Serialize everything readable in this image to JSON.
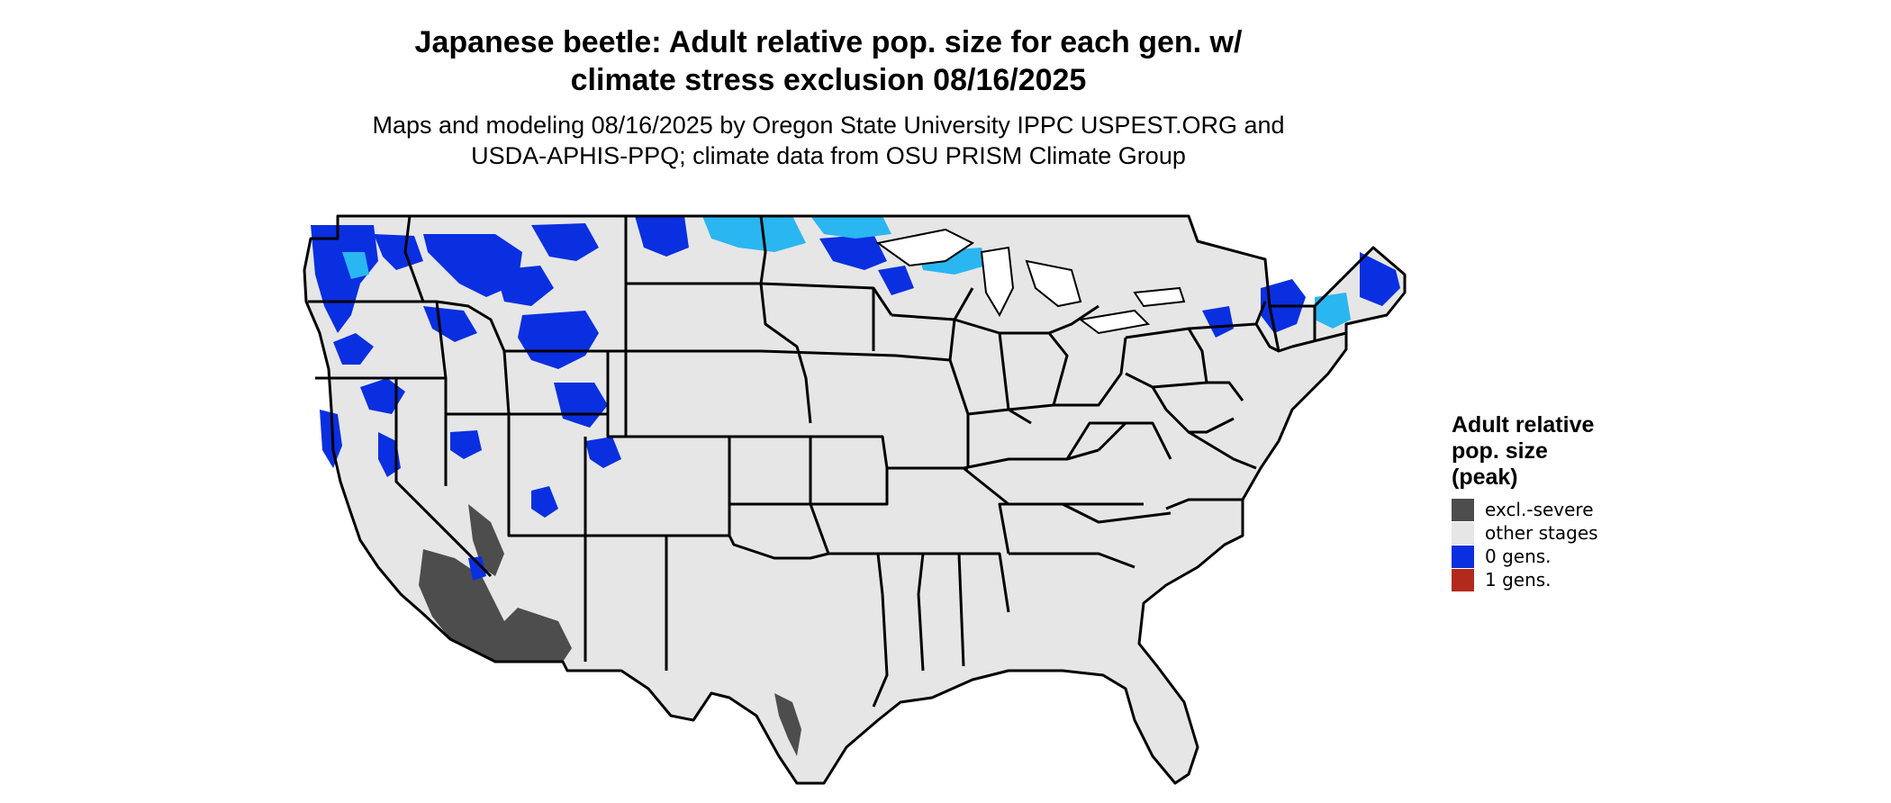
{
  "title_lines": [
    "Japanese beetle: Adult relative pop. size for each gen. w/",
    "climate stress exclusion 08/16/2025"
  ],
  "subtitle_lines": [
    "Maps and modeling 08/16/2025 by Oregon State University IPPC USPEST.ORG and",
    "USDA-APHIS-PPQ; climate data from OSU PRISM Climate Group"
  ],
  "legend": {
    "title_lines": [
      "Adult relative",
      "pop. size",
      "(peak)"
    ],
    "items": [
      {
        "label": "excl.-severe",
        "color": "#4d4d4d"
      },
      {
        "label": "other stages",
        "color": "#e6e6e6"
      },
      {
        "label": "0 gens.",
        "color": "#0a2fe0"
      },
      {
        "label": "1 gens.",
        "color": "#b22a1c"
      }
    ]
  },
  "map_colors": {
    "land": "#e6e6e6",
    "border": "#000000",
    "excluded": "#4d4d4d",
    "zero_gens_dark": "#0a2fe0",
    "zero_gens_light": "#2ab6f0"
  }
}
